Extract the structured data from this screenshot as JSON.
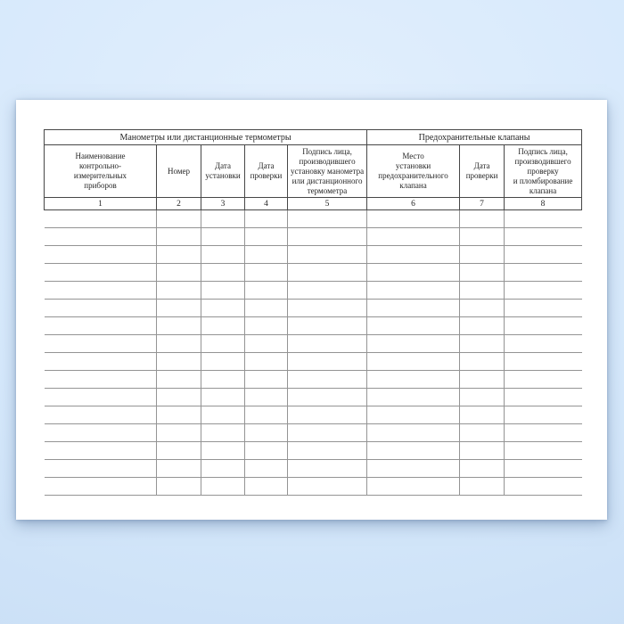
{
  "theme": {
    "background_center": "#e2effd",
    "background_mid": "#d5e8fb",
    "background_edge": "#c9def5",
    "sheet_color": "#ffffff",
    "header_line_color": "#474747",
    "body_line_color": "#949494",
    "text_color": "#262626"
  },
  "table": {
    "group_headers": [
      {
        "label": "Манометры или дистанционные термометры",
        "colspan": 5
      },
      {
        "label": "Предохранительные клапаны",
        "colspan": 3
      }
    ],
    "columns": [
      {
        "number": "1",
        "label": "Наименование\nконтрольно-\nизмерительных\nприборов"
      },
      {
        "number": "2",
        "label": "Номер"
      },
      {
        "number": "3",
        "label": "Дата\nустановки"
      },
      {
        "number": "4",
        "label": "Дата\nпроверки"
      },
      {
        "number": "5",
        "label": "Подпись лица,\nпроизводившего\nустановку манометра\nили дистанционного\nтермометра"
      },
      {
        "number": "6",
        "label": "Место\nустановки\nпредохранительного\nклапана"
      },
      {
        "number": "7",
        "label": "Дата\nпроверки"
      },
      {
        "number": "8",
        "label": "Подпись лица,\nпроизводившего\nпроверку\nи пломбирование\nклапана"
      }
    ],
    "body_row_count": 16
  }
}
